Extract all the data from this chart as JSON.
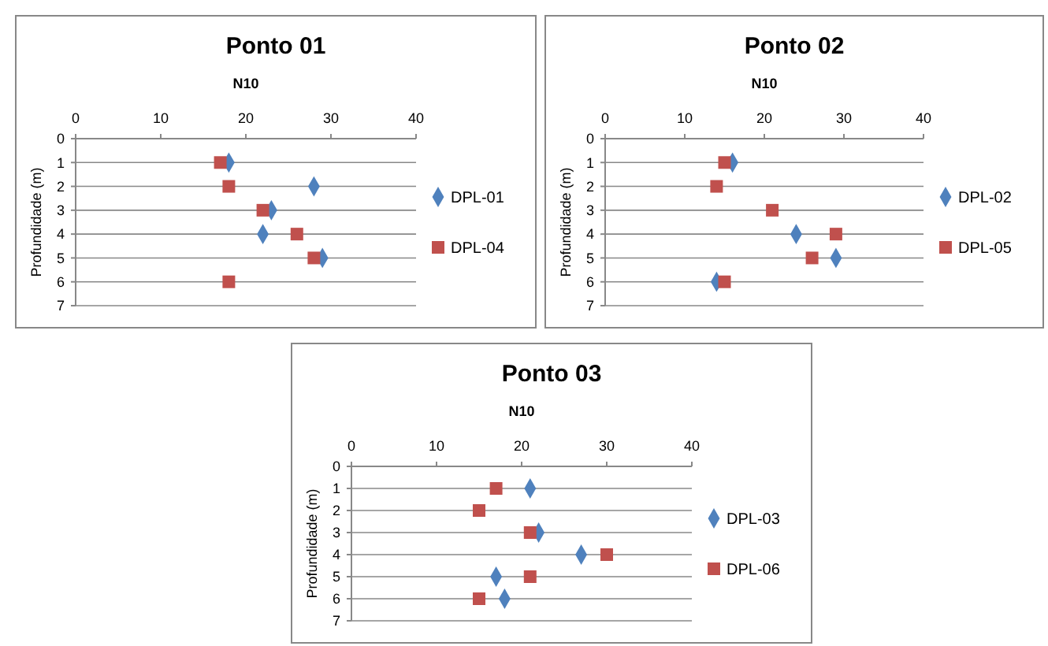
{
  "chart_data": [
    {
      "type": "scatter",
      "title": "Ponto 01",
      "xlabel": "N10",
      "ylabel": "Profundidade (m)",
      "xlim": [
        0,
        40
      ],
      "xticks": [
        0,
        10,
        20,
        30,
        40
      ],
      "ylim": [
        7,
        0
      ],
      "yticks": [
        0,
        1,
        2,
        3,
        4,
        5,
        6,
        7
      ],
      "grid": "y",
      "legend": "right",
      "series": [
        {
          "name": "DPL-01",
          "color": "#4f81bd",
          "marker": "diamond",
          "x": [
            18,
            28,
            23,
            22,
            29
          ],
          "values": [
            1,
            2,
            3,
            4,
            5
          ]
        },
        {
          "name": "DPL-04",
          "color": "#c0504d",
          "marker": "square",
          "x": [
            17,
            18,
            22,
            26,
            28,
            18
          ],
          "values": [
            1,
            2,
            3,
            4,
            5,
            6
          ]
        }
      ]
    },
    {
      "type": "scatter",
      "title": "Ponto 02",
      "xlabel": "N10",
      "ylabel": "Profundidade (m)",
      "xlim": [
        0,
        40
      ],
      "xticks": [
        0,
        10,
        20,
        30,
        40
      ],
      "ylim": [
        7,
        0
      ],
      "yticks": [
        0,
        1,
        2,
        3,
        4,
        5,
        6,
        7
      ],
      "grid": "y",
      "legend": "right",
      "series": [
        {
          "name": "DPL-02",
          "color": "#4f81bd",
          "marker": "diamond",
          "x": [
            16,
            null,
            24,
            29,
            14
          ],
          "values": [
            1,
            null,
            4,
            5,
            6
          ]
        },
        {
          "name": "DPL-05",
          "color": "#c0504d",
          "marker": "square",
          "x": [
            15,
            14,
            21,
            29,
            26,
            15
          ],
          "values": [
            1,
            2,
            3,
            4,
            5,
            6
          ]
        }
      ]
    },
    {
      "type": "scatter",
      "title": "Ponto 03",
      "xlabel": "N10",
      "ylabel": "Profundidade (m)",
      "xlim": [
        0,
        40
      ],
      "xticks": [
        0,
        10,
        20,
        30,
        40
      ],
      "ylim": [
        7,
        0
      ],
      "yticks": [
        0,
        1,
        2,
        3,
        4,
        5,
        6,
        7
      ],
      "grid": "y",
      "legend": "right",
      "series": [
        {
          "name": "DPL-03",
          "color": "#4f81bd",
          "marker": "diamond",
          "x": [
            21,
            22,
            27,
            17,
            18
          ],
          "values": [
            1,
            3,
            4,
            5,
            6
          ]
        },
        {
          "name": "DPL-06",
          "color": "#c0504d",
          "marker": "square",
          "x": [
            17,
            15,
            21,
            30,
            21,
            15
          ],
          "values": [
            1,
            2,
            3,
            4,
            5,
            6
          ]
        }
      ]
    }
  ]
}
